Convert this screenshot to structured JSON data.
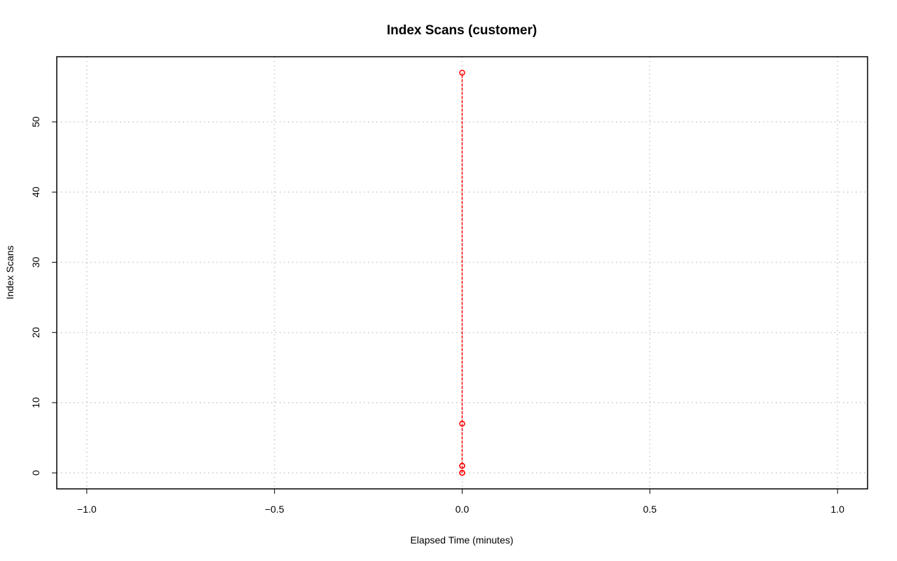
{
  "chart_data": {
    "type": "line",
    "title": "Index Scans (customer)",
    "xlabel": "Elapsed Time (minutes)",
    "ylabel": "Index Scans",
    "xlim": [
      -1.08,
      1.08
    ],
    "ylim": [
      -2.28,
      59.28
    ],
    "x_ticks": [
      -1.0,
      -0.5,
      0.0,
      0.5,
      1.0
    ],
    "x_tick_labels": [
      "−1.0",
      "−0.5",
      "0.0",
      "0.5",
      "1.0"
    ],
    "y_ticks": [
      0,
      10,
      20,
      30,
      40,
      50
    ],
    "y_tick_labels": [
      "0",
      "10",
      "20",
      "30",
      "40",
      "50"
    ],
    "grid": true,
    "series": [
      {
        "color": "#ff0000",
        "line_style": "dashed",
        "marker": "open-circle",
        "x": [
          0,
          0,
          0,
          0,
          0,
          0
        ],
        "y": [
          0,
          0,
          1,
          1,
          7,
          57
        ]
      }
    ]
  }
}
